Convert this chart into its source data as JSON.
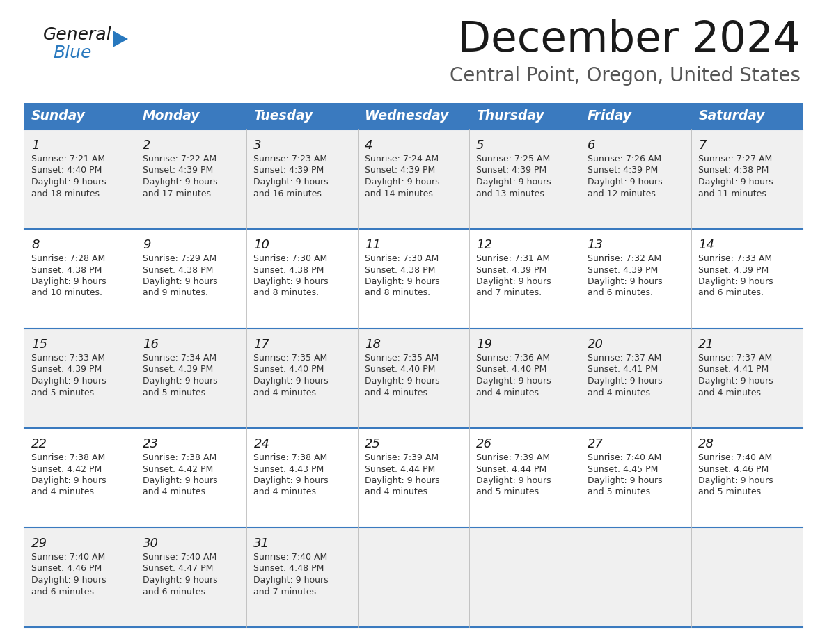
{
  "title": "December 2024",
  "subtitle": "Central Point, Oregon, United States",
  "header_color": "#3a7abf",
  "header_text_color": "#ffffff",
  "days_of_week": [
    "Sunday",
    "Monday",
    "Tuesday",
    "Wednesday",
    "Thursday",
    "Friday",
    "Saturday"
  ],
  "weeks": [
    [
      {
        "day": "1",
        "sunrise": "7:21 AM",
        "sunset": "4:40 PM",
        "daylight_line1": "9 hours",
        "daylight_line2": "and 18 minutes."
      },
      {
        "day": "2",
        "sunrise": "7:22 AM",
        "sunset": "4:39 PM",
        "daylight_line1": "9 hours",
        "daylight_line2": "and 17 minutes."
      },
      {
        "day": "3",
        "sunrise": "7:23 AM",
        "sunset": "4:39 PM",
        "daylight_line1": "9 hours",
        "daylight_line2": "and 16 minutes."
      },
      {
        "day": "4",
        "sunrise": "7:24 AM",
        "sunset": "4:39 PM",
        "daylight_line1": "9 hours",
        "daylight_line2": "and 14 minutes."
      },
      {
        "day": "5",
        "sunrise": "7:25 AM",
        "sunset": "4:39 PM",
        "daylight_line1": "9 hours",
        "daylight_line2": "and 13 minutes."
      },
      {
        "day": "6",
        "sunrise": "7:26 AM",
        "sunset": "4:39 PM",
        "daylight_line1": "9 hours",
        "daylight_line2": "and 12 minutes."
      },
      {
        "day": "7",
        "sunrise": "7:27 AM",
        "sunset": "4:38 PM",
        "daylight_line1": "9 hours",
        "daylight_line2": "and 11 minutes."
      }
    ],
    [
      {
        "day": "8",
        "sunrise": "7:28 AM",
        "sunset": "4:38 PM",
        "daylight_line1": "9 hours",
        "daylight_line2": "and 10 minutes."
      },
      {
        "day": "9",
        "sunrise": "7:29 AM",
        "sunset": "4:38 PM",
        "daylight_line1": "9 hours",
        "daylight_line2": "and 9 minutes."
      },
      {
        "day": "10",
        "sunrise": "7:30 AM",
        "sunset": "4:38 PM",
        "daylight_line1": "9 hours",
        "daylight_line2": "and 8 minutes."
      },
      {
        "day": "11",
        "sunrise": "7:30 AM",
        "sunset": "4:38 PM",
        "daylight_line1": "9 hours",
        "daylight_line2": "and 8 minutes."
      },
      {
        "day": "12",
        "sunrise": "7:31 AM",
        "sunset": "4:39 PM",
        "daylight_line1": "9 hours",
        "daylight_line2": "and 7 minutes."
      },
      {
        "day": "13",
        "sunrise": "7:32 AM",
        "sunset": "4:39 PM",
        "daylight_line1": "9 hours",
        "daylight_line2": "and 6 minutes."
      },
      {
        "day": "14",
        "sunrise": "7:33 AM",
        "sunset": "4:39 PM",
        "daylight_line1": "9 hours",
        "daylight_line2": "and 6 minutes."
      }
    ],
    [
      {
        "day": "15",
        "sunrise": "7:33 AM",
        "sunset": "4:39 PM",
        "daylight_line1": "9 hours",
        "daylight_line2": "and 5 minutes."
      },
      {
        "day": "16",
        "sunrise": "7:34 AM",
        "sunset": "4:39 PM",
        "daylight_line1": "9 hours",
        "daylight_line2": "and 5 minutes."
      },
      {
        "day": "17",
        "sunrise": "7:35 AM",
        "sunset": "4:40 PM",
        "daylight_line1": "9 hours",
        "daylight_line2": "and 4 minutes."
      },
      {
        "day": "18",
        "sunrise": "7:35 AM",
        "sunset": "4:40 PM",
        "daylight_line1": "9 hours",
        "daylight_line2": "and 4 minutes."
      },
      {
        "day": "19",
        "sunrise": "7:36 AM",
        "sunset": "4:40 PM",
        "daylight_line1": "9 hours",
        "daylight_line2": "and 4 minutes."
      },
      {
        "day": "20",
        "sunrise": "7:37 AM",
        "sunset": "4:41 PM",
        "daylight_line1": "9 hours",
        "daylight_line2": "and 4 minutes."
      },
      {
        "day": "21",
        "sunrise": "7:37 AM",
        "sunset": "4:41 PM",
        "daylight_line1": "9 hours",
        "daylight_line2": "and 4 minutes."
      }
    ],
    [
      {
        "day": "22",
        "sunrise": "7:38 AM",
        "sunset": "4:42 PM",
        "daylight_line1": "9 hours",
        "daylight_line2": "and 4 minutes."
      },
      {
        "day": "23",
        "sunrise": "7:38 AM",
        "sunset": "4:42 PM",
        "daylight_line1": "9 hours",
        "daylight_line2": "and 4 minutes."
      },
      {
        "day": "24",
        "sunrise": "7:38 AM",
        "sunset": "4:43 PM",
        "daylight_line1": "9 hours",
        "daylight_line2": "and 4 minutes."
      },
      {
        "day": "25",
        "sunrise": "7:39 AM",
        "sunset": "4:44 PM",
        "daylight_line1": "9 hours",
        "daylight_line2": "and 4 minutes."
      },
      {
        "day": "26",
        "sunrise": "7:39 AM",
        "sunset": "4:44 PM",
        "daylight_line1": "9 hours",
        "daylight_line2": "and 5 minutes."
      },
      {
        "day": "27",
        "sunrise": "7:40 AM",
        "sunset": "4:45 PM",
        "daylight_line1": "9 hours",
        "daylight_line2": "and 5 minutes."
      },
      {
        "day": "28",
        "sunrise": "7:40 AM",
        "sunset": "4:46 PM",
        "daylight_line1": "9 hours",
        "daylight_line2": "and 5 minutes."
      }
    ],
    [
      {
        "day": "29",
        "sunrise": "7:40 AM",
        "sunset": "4:46 PM",
        "daylight_line1": "9 hours",
        "daylight_line2": "and 6 minutes."
      },
      {
        "day": "30",
        "sunrise": "7:40 AM",
        "sunset": "4:47 PM",
        "daylight_line1": "9 hours",
        "daylight_line2": "and 6 minutes."
      },
      {
        "day": "31",
        "sunrise": "7:40 AM",
        "sunset": "4:48 PM",
        "daylight_line1": "9 hours",
        "daylight_line2": "and 7 minutes."
      },
      null,
      null,
      null,
      null
    ]
  ],
  "bg_color": "#ffffff",
  "cell_bg_even": "#f0f0f0",
  "cell_bg_odd": "#ffffff",
  "border_color": "#3a7abf",
  "logo_general_color": "#1a1a1a",
  "logo_blue_color": "#2878be",
  "title_color": "#1a1a1a",
  "subtitle_color": "#555555",
  "day_num_color": "#1a1a1a",
  "cell_text_color": "#333333",
  "fig_width": 11.88,
  "fig_height": 9.18,
  "dpi": 100
}
